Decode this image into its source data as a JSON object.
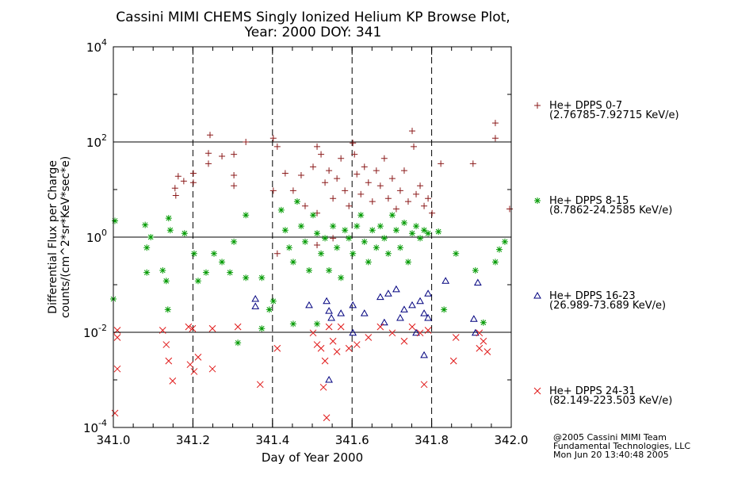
{
  "chart_data": {
    "type": "scatter",
    "title": [
      "Cassini MIMI CHEMS Singly Ionized Helium KP Browse Plot,",
      "Year: 2000 DOY: 341"
    ],
    "xlabel": "Day of Year 2000",
    "ylabel": [
      "Differential Flux per Charge",
      "counts/(cm^2*sr*KeV*sec*e)"
    ],
    "xlim": [
      341.0,
      342.0
    ],
    "ylim": [
      0.0001,
      10000
    ],
    "yscale": "log",
    "x_ticks": [
      "341.0",
      "341.2",
      "341.4",
      "341.6",
      "341.8",
      "342.0"
    ],
    "y_ticks": [
      {
        "base": "10",
        "exp": "4",
        "value": 10000
      },
      {
        "base": "10",
        "exp": "2",
        "value": 100
      },
      {
        "base": "10",
        "exp": "0",
        "value": 1
      },
      {
        "base": "10",
        "exp": "-2",
        "value": 0.01
      },
      {
        "base": "10",
        "exp": "-4",
        "value": 0.0001
      }
    ],
    "vlines_dashed": [
      341.2,
      341.4,
      341.6,
      341.8
    ],
    "hlines_solid": [
      100,
      1,
      0.01
    ],
    "legend_placement": "right",
    "series": [
      {
        "name": "He+ DPPS 0-7",
        "range": "(2.76785-7.92715 KeV/e)",
        "marker": "plus",
        "color": "#8b1a1a",
        "points": [
          [
            341.155,
            10.7
          ],
          [
            341.157,
            7.5
          ],
          [
            341.163,
            19
          ],
          [
            341.177,
            15
          ],
          [
            341.201,
            22
          ],
          [
            341.201,
            14
          ],
          [
            341.243,
            140
          ],
          [
            341.239,
            58
          ],
          [
            341.239,
            35
          ],
          [
            341.273,
            50
          ],
          [
            341.303,
            55
          ],
          [
            341.303,
            20
          ],
          [
            341.303,
            12
          ],
          [
            341.333,
            100
          ],
          [
            341.402,
            120
          ],
          [
            341.412,
            80
          ],
          [
            341.402,
            9.5
          ],
          [
            341.432,
            22
          ],
          [
            341.452,
            9.5
          ],
          [
            341.472,
            20
          ],
          [
            341.482,
            4.5
          ],
          [
            341.502,
            30
          ],
          [
            341.512,
            80
          ],
          [
            341.512,
            3.2
          ],
          [
            341.522,
            55
          ],
          [
            341.532,
            14
          ],
          [
            341.542,
            25
          ],
          [
            341.552,
            6.5
          ],
          [
            341.562,
            17
          ],
          [
            341.572,
            45
          ],
          [
            341.582,
            9.5
          ],
          [
            341.592,
            4.5
          ],
          [
            341.602,
            95
          ],
          [
            341.606,
            55
          ],
          [
            341.612,
            21
          ],
          [
            341.622,
            8
          ],
          [
            341.631,
            30
          ],
          [
            341.641,
            14
          ],
          [
            341.651,
            5.6
          ],
          [
            341.661,
            25
          ],
          [
            341.671,
            12
          ],
          [
            341.681,
            45
          ],
          [
            341.691,
            6.5
          ],
          [
            341.701,
            17
          ],
          [
            341.711,
            3.9
          ],
          [
            341.721,
            9.5
          ],
          [
            341.731,
            25
          ],
          [
            341.741,
            5.6
          ],
          [
            341.751,
            170
          ],
          [
            341.755,
            80
          ],
          [
            341.761,
            8
          ],
          [
            341.771,
            12
          ],
          [
            341.781,
            4.5
          ],
          [
            341.791,
            6.5
          ],
          [
            341.801,
            3.2
          ],
          [
            341.823,
            35
          ],
          [
            341.904,
            35
          ],
          [
            341.96,
            250
          ],
          [
            341.96,
            120
          ],
          [
            341.996,
            3.9
          ],
          [
            341.512,
            0.68
          ],
          [
            341.412,
            0.45
          ],
          [
            341.552,
            0.95
          ]
        ]
      },
      {
        "name": "He+ DPPS 8-15",
        "range": "(8.7862-24.2585 KeV/e)",
        "marker": "asterisk",
        "color": "#009a00",
        "points": [
          [
            341.004,
            2.2
          ],
          [
            341.0,
            0.05
          ],
          [
            341.08,
            1.8
          ],
          [
            341.084,
            0.6
          ],
          [
            341.094,
            1.0
          ],
          [
            341.084,
            0.18
          ],
          [
            341.124,
            0.2
          ],
          [
            341.133,
            0.12
          ],
          [
            341.139,
            2.5
          ],
          [
            341.143,
            1.4
          ],
          [
            341.137,
            0.03
          ],
          [
            341.179,
            1.2
          ],
          [
            341.203,
            0.45
          ],
          [
            341.213,
            0.12
          ],
          [
            341.233,
            0.18
          ],
          [
            341.253,
            0.45
          ],
          [
            341.273,
            0.3
          ],
          [
            341.293,
            0.18
          ],
          [
            341.303,
            0.8
          ],
          [
            341.333,
            2.9
          ],
          [
            341.333,
            0.14
          ],
          [
            341.373,
            0.14
          ],
          [
            341.313,
            0.006
          ],
          [
            341.373,
            0.012
          ],
          [
            341.392,
            0.03
          ],
          [
            341.402,
            0.045
          ],
          [
            341.422,
            3.7
          ],
          [
            341.432,
            1.4
          ],
          [
            341.442,
            0.6
          ],
          [
            341.452,
            0.3
          ],
          [
            341.462,
            5.6
          ],
          [
            341.472,
            1.7
          ],
          [
            341.482,
            0.8
          ],
          [
            341.492,
            0.2
          ],
          [
            341.502,
            2.9
          ],
          [
            341.512,
            1.2
          ],
          [
            341.522,
            0.45
          ],
          [
            341.532,
            0.95
          ],
          [
            341.542,
            0.2
          ],
          [
            341.552,
            1.7
          ],
          [
            341.562,
            0.6
          ],
          [
            341.572,
            0.14
          ],
          [
            341.582,
            1.4
          ],
          [
            341.592,
            0.95
          ],
          [
            341.602,
            0.45
          ],
          [
            341.612,
            1.7
          ],
          [
            341.622,
            2.9
          ],
          [
            341.631,
            0.8
          ],
          [
            341.641,
            0.3
          ],
          [
            341.651,
            1.4
          ],
          [
            341.661,
            0.6
          ],
          [
            341.671,
            1.7
          ],
          [
            341.681,
            0.95
          ],
          [
            341.691,
            0.45
          ],
          [
            341.701,
            2.9
          ],
          [
            341.711,
            1.4
          ],
          [
            341.721,
            0.6
          ],
          [
            341.731,
            2.0
          ],
          [
            341.741,
            0.3
          ],
          [
            341.751,
            1.2
          ],
          [
            341.761,
            1.7
          ],
          [
            341.771,
            0.95
          ],
          [
            341.781,
            1.4
          ],
          [
            341.791,
            1.2
          ],
          [
            341.817,
            1.3
          ],
          [
            341.831,
            0.03
          ],
          [
            341.861,
            0.45
          ],
          [
            341.91,
            0.2
          ],
          [
            341.93,
            0.016
          ],
          [
            341.96,
            0.3
          ],
          [
            341.97,
            0.55
          ],
          [
            341.984,
            0.8
          ],
          [
            341.452,
            0.015
          ],
          [
            341.512,
            0.015
          ]
        ]
      },
      {
        "name": "He+ DPPS 16-23",
        "range": "(26.989-73.689 KeV/e)",
        "marker": "triangle",
        "color": "#00007f",
        "points": [
          [
            341.357,
            0.05
          ],
          [
            341.357,
            0.035
          ],
          [
            341.492,
            0.037
          ],
          [
            341.536,
            0.045
          ],
          [
            341.542,
            0.028
          ],
          [
            341.548,
            0.02
          ],
          [
            341.572,
            0.025
          ],
          [
            341.602,
            0.0097
          ],
          [
            341.602,
            0.037
          ],
          [
            341.631,
            0.025
          ],
          [
            341.671,
            0.055
          ],
          [
            341.681,
            0.016
          ],
          [
            341.691,
            0.065
          ],
          [
            341.711,
            0.08
          ],
          [
            341.721,
            0.02
          ],
          [
            341.731,
            0.03
          ],
          [
            341.751,
            0.037
          ],
          [
            341.761,
            0.0097
          ],
          [
            341.771,
            0.045
          ],
          [
            341.781,
            0.025
          ],
          [
            341.791,
            0.02
          ],
          [
            341.791,
            0.065
          ],
          [
            341.835,
            0.12
          ],
          [
            341.906,
            0.019
          ],
          [
            341.91,
            0.0097
          ],
          [
            341.916,
            0.11
          ],
          [
            341.542,
            0.001
          ],
          [
            341.781,
            0.0033
          ]
        ]
      },
      {
        "name": "He+ DPPS 24-31",
        "range": "(82.149-223.503 KeV/e)",
        "marker": "x",
        "color": "#e01818",
        "points": [
          [
            341.004,
            0.0002
          ],
          [
            341.01,
            0.011
          ],
          [
            341.01,
            0.0017
          ],
          [
            341.01,
            0.0078
          ],
          [
            341.124,
            0.011
          ],
          [
            341.133,
            0.0055
          ],
          [
            341.139,
            0.0025
          ],
          [
            341.149,
            0.00095
          ],
          [
            341.189,
            0.013
          ],
          [
            341.199,
            0.012
          ],
          [
            341.193,
            0.0021
          ],
          [
            341.203,
            0.0015
          ],
          [
            341.213,
            0.003
          ],
          [
            341.249,
            0.012
          ],
          [
            341.249,
            0.0017
          ],
          [
            341.313,
            0.013
          ],
          [
            341.369,
            0.0008
          ],
          [
            341.412,
            0.0046
          ],
          [
            341.502,
            0.0097
          ],
          [
            341.512,
            0.0055
          ],
          [
            341.522,
            0.0046
          ],
          [
            341.532,
            0.0025
          ],
          [
            341.528,
            0.0007
          ],
          [
            341.536,
            0.00016
          ],
          [
            341.542,
            0.013
          ],
          [
            341.552,
            0.0065
          ],
          [
            341.562,
            0.0039
          ],
          [
            341.572,
            0.013
          ],
          [
            341.592,
            0.0046
          ],
          [
            341.612,
            0.0055
          ],
          [
            341.641,
            0.0078
          ],
          [
            341.671,
            0.013
          ],
          [
            341.701,
            0.0097
          ],
          [
            341.731,
            0.0065
          ],
          [
            341.751,
            0.013
          ],
          [
            341.771,
            0.0097
          ],
          [
            341.781,
            0.0008
          ],
          [
            341.791,
            0.011
          ],
          [
            341.855,
            0.0025
          ],
          [
            341.861,
            0.0078
          ],
          [
            341.92,
            0.0097
          ],
          [
            341.93,
            0.0065
          ],
          [
            341.94,
            0.0039
          ],
          [
            341.92,
            0.0046
          ]
        ]
      }
    ]
  },
  "footer": {
    "credit_lines": [
      "@2005 Cassini MIMI Team",
      "Fundamental Technologies, LLC",
      "Mon Jun 20 13:40:48 2005"
    ]
  }
}
